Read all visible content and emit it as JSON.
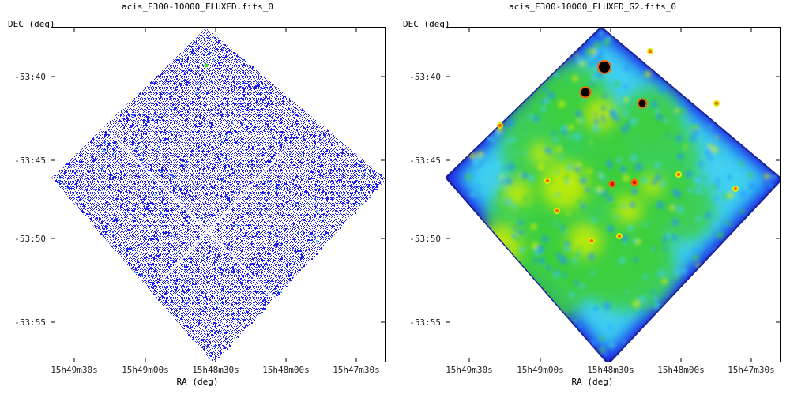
{
  "panels": [
    {
      "title": "acis_E300-10000_FLUXED.fits_0",
      "ylabel": "DEC (deg)",
      "xlabel": "RA (deg)"
    },
    {
      "title": "acis_E300-10000_FLUXED_G2.fits_0",
      "ylabel": "DEC (deg)",
      "xlabel": "RA (deg)"
    }
  ],
  "colors": {
    "low": "#2020e8",
    "mid_low": "#3fd0f0",
    "mid": "#3ccf3c",
    "high": "#d8f000",
    "peak": "#ff6000",
    "max": "#000000",
    "edge": "#1a1aa0"
  },
  "chart_data": [
    {
      "type": "heatmap",
      "title": "acis_E300-10000_FLUXED.fits_0",
      "xlabel": "RA (deg)",
      "ylabel": "DEC (deg)",
      "x_ticks": [
        "15h49m30s",
        "15h49m00s",
        "15h48m30s",
        "15h48m00s",
        "15h47m30s"
      ],
      "y_ticks": [
        "-53:40",
        "-53:45",
        "-53:50",
        "-53:55"
      ],
      "footprint": "diamond",
      "style": "sparse-pixel-counts",
      "bright_sources": 1,
      "grid": false
    },
    {
      "type": "heatmap",
      "title": "acis_E300-10000_FLUXED_G2.fits_0",
      "xlabel": "RA (deg)",
      "ylabel": "DEC (deg)",
      "x_ticks": [
        "15h49m30s",
        "15h49m00s",
        "15h48m30s",
        "15h48m00s",
        "15h47m30s"
      ],
      "y_ticks": [
        "-53:40",
        "-53:45",
        "-53:50",
        "-53:55"
      ],
      "footprint": "diamond",
      "style": "gaussian-smoothed",
      "bright_sources": 3,
      "moderate_sources": 9,
      "grid": false
    }
  ]
}
